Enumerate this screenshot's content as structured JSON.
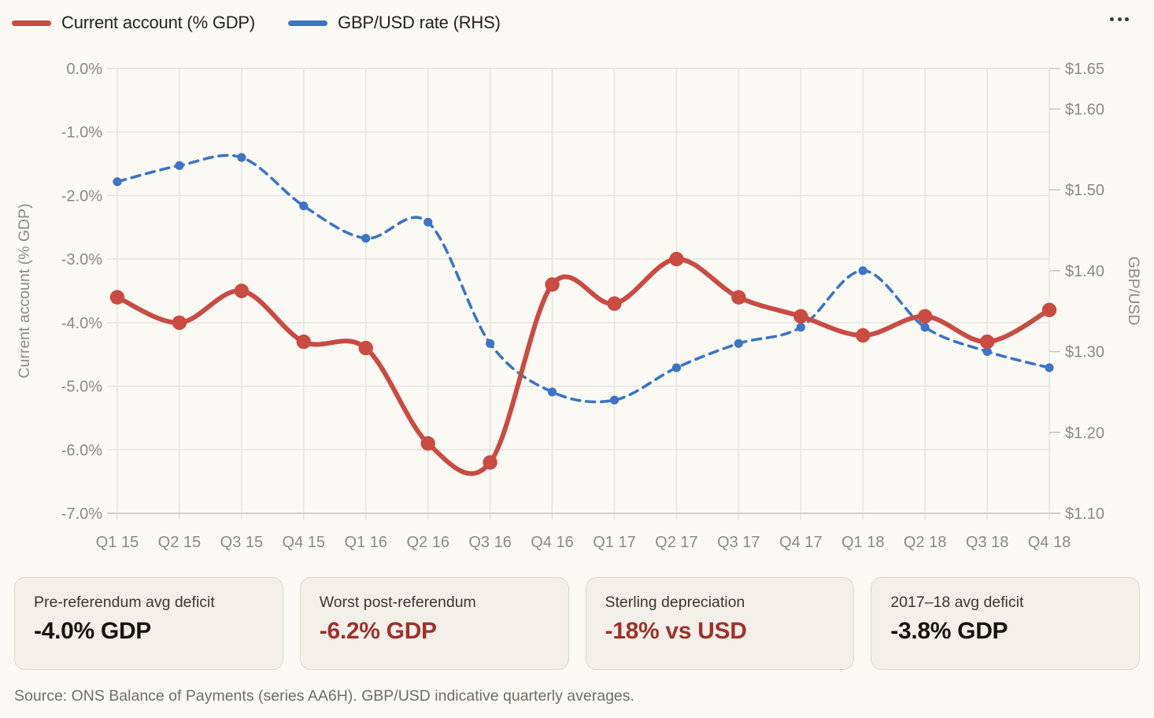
{
  "legend": {
    "series": [
      {
        "label": "Current account (% GDP)",
        "color": "#c94b42"
      },
      {
        "label": "GBP/USD rate (RHS)",
        "color": "#3d74c6"
      }
    ]
  },
  "icons": {
    "more_options": "ellipsis-icon"
  },
  "chart_data": {
    "type": "line",
    "categories": [
      "Q1 15",
      "Q2 15",
      "Q3 15",
      "Q4 15",
      "Q1 16",
      "Q2 16",
      "Q3 16",
      "Q4 16",
      "Q1 17",
      "Q2 17",
      "Q3 17",
      "Q4 17",
      "Q1 18",
      "Q2 18",
      "Q3 18",
      "Q4 18"
    ],
    "series": [
      {
        "name": "Current account (% GDP)",
        "axis": "left",
        "color": "#c94b42",
        "style": "solid",
        "values": [
          -3.6,
          -4.0,
          -3.5,
          -4.3,
          -4.4,
          -5.9,
          -6.2,
          -3.4,
          -3.7,
          -3.0,
          -3.6,
          -3.9,
          -4.2,
          -3.9,
          -4.3,
          -3.8
        ]
      },
      {
        "name": "GBP/USD rate (RHS)",
        "axis": "right",
        "color": "#3d74c6",
        "style": "dashed",
        "values": [
          1.51,
          1.53,
          1.54,
          1.48,
          1.44,
          1.46,
          1.31,
          1.25,
          1.24,
          1.28,
          1.31,
          1.33,
          1.4,
          1.33,
          1.3,
          1.28
        ]
      }
    ],
    "left_axis": {
      "title": "Current account (% GDP)",
      "range": [
        -7,
        0
      ],
      "tick_values": [
        0,
        -1,
        -2,
        -3,
        -4,
        -5,
        -6,
        -7
      ],
      "tick_labels": [
        "0.0%",
        "-1.0%",
        "-2.0%",
        "-3.0%",
        "-4.0%",
        "-5.0%",
        "-6.0%",
        "-7.0%"
      ]
    },
    "right_axis": {
      "title": "GBP/USD",
      "range": [
        1.1,
        1.65
      ],
      "tick_values": [
        1.65,
        1.6,
        1.5,
        1.4,
        1.3,
        1.2,
        1.1
      ],
      "tick_labels": [
        "$1.65",
        "$1.60",
        "$1.50",
        "$1.40",
        "$1.30",
        "$1.20",
        "$1.10"
      ]
    },
    "grid": true,
    "legend_position": "top-left"
  },
  "stat_cards": [
    {
      "label": "Pre-referendum avg deficit",
      "value": "-4.0% GDP",
      "value_color": "#16140e"
    },
    {
      "label": "Worst post-referendum",
      "value": "-6.2% GDP",
      "value_color": "#9e3129"
    },
    {
      "label": "Sterling depreciation",
      "value": "-18% vs USD",
      "value_color": "#9e3129"
    },
    {
      "label": "2017–18 avg deficit",
      "value": "-3.8% GDP",
      "value_color": "#16140e"
    }
  ],
  "source": "Source: ONS Balance of Payments (series AA6H). GBP/USD indicative quarterly averages."
}
